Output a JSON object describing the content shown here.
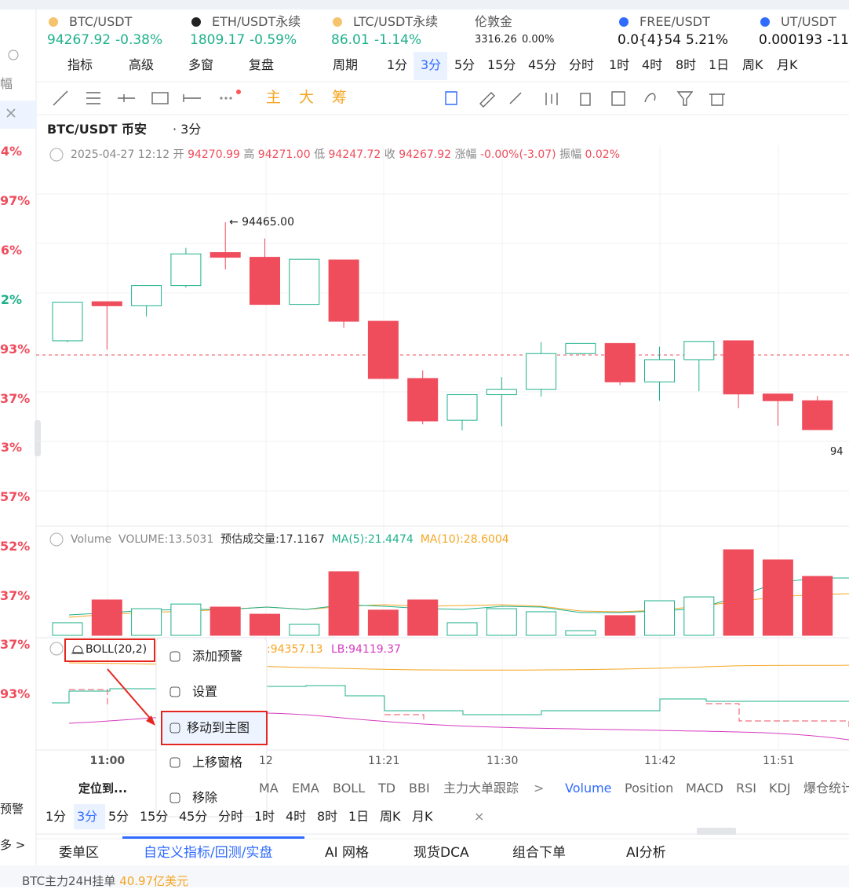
{
  "sidebar": {
    "sort_label": "幅",
    "changes": [
      {
        "text": "4%",
        "color": "#ef4c5c"
      },
      {
        "text": "97%",
        "color": "#ef4c5c"
      },
      {
        "text": "6%",
        "color": "#ef4c5c"
      },
      {
        "text": "2%",
        "color": "#1fb08b"
      },
      {
        "text": "93%",
        "color": "#ef4c5c"
      },
      {
        "text": "37%",
        "color": "#ef4c5c"
      },
      {
        "text": "3%",
        "color": "#ef4c5c"
      },
      {
        "text": "57%",
        "color": "#ef4c5c"
      },
      {
        "text": "52%",
        "color": "#ef4c5c"
      },
      {
        "text": "37%",
        "color": "#ef4c5c"
      },
      {
        "text": "37%",
        "color": "#ef4c5c"
      },
      {
        "text": "93%",
        "color": "#ef4c5c"
      }
    ],
    "alert": "预警",
    "more": "多 >"
  },
  "tickers": [
    {
      "symbol": "BTC/USDT",
      "price": "94267.92",
      "change": "-0.38%",
      "color": "#1fb08b"
    },
    {
      "symbol": "ETH/USDT永续",
      "price": "1809.17",
      "change": "-0.59%",
      "color": "#1fb08b"
    },
    {
      "symbol": "LTC/USDT永续",
      "price": "86.01",
      "change": "-1.14%",
      "color": "#1fb08b"
    },
    {
      "symbol": "伦敦金",
      "price": "3316.26",
      "change": "0.00%",
      "color": "#222222"
    },
    {
      "symbol": "FREE/USDT",
      "price": "0.0{4}54",
      "change": "5.21%",
      "color": "#111111"
    },
    {
      "symbol": "UT/USDT",
      "price": "0.000193",
      "change": "-11",
      "color": "#111111"
    }
  ],
  "toolbar": {
    "items": [
      "指标",
      "高级",
      "多窗",
      "复盘"
    ],
    "period": "周期",
    "intervals": [
      "1分",
      "3分",
      "5分",
      "15分",
      "45分",
      "分时",
      "1时",
      "4时",
      "8时",
      "1日",
      "周K",
      "月K"
    ],
    "active": 1
  },
  "draw_toolbar": {
    "chips": [
      "主",
      "大",
      "筹"
    ]
  },
  "chart": {
    "symbol": "BTC/USDT 币安",
    "interval": "· 3分",
    "ohlc": {
      "time": "2025-04-27 12:12",
      "open_label": "开",
      "open": "94270.99",
      "high_label": "高",
      "high": "94271.00",
      "low_label": "低",
      "low": "94247.72",
      "close_label": "收",
      "close": "94267.92",
      "change_label": "涨幅",
      "change": "-0.00%(-3.07)",
      "amp_label": "振幅",
      "amp": "0.02%"
    },
    "high_marker": "← 94465.00",
    "price_edge": "94",
    "candles": [
      {
        "open": 94289,
        "high": 94346,
        "low": 94287,
        "close": 94346
      },
      {
        "open": 94347,
        "high": 94347,
        "low": 94276,
        "close": 94341
      },
      {
        "open": 94341,
        "high": 94371,
        "low": 94325,
        "close": 94371
      },
      {
        "open": 94371,
        "high": 94427,
        "low": 94368,
        "close": 94418
      },
      {
        "open": 94420,
        "high": 94465,
        "low": 94395,
        "close": 94413
      },
      {
        "open": 94413,
        "high": 94441,
        "low": 94343,
        "close": 94343
      },
      {
        "open": 94343,
        "high": 94410,
        "low": 94343,
        "close": 94410
      },
      {
        "open": 94409,
        "high": 94409,
        "low": 94308,
        "close": 94318
      },
      {
        "open": 94318,
        "high": 94318,
        "low": 94233,
        "close": 94233
      },
      {
        "open": 94233,
        "high": 94245,
        "low": 94165,
        "close": 94170
      },
      {
        "open": 94171,
        "high": 94209,
        "low": 94156,
        "close": 94209
      },
      {
        "open": 94209,
        "high": 94235,
        "low": 94162,
        "close": 94217
      },
      {
        "open": 94217,
        "high": 94287,
        "low": 94206,
        "close": 94270
      },
      {
        "open": 94270,
        "high": 94285,
        "low": 94268,
        "close": 94285
      },
      {
        "open": 94285,
        "high": 94285,
        "low": 94223,
        "close": 94228
      },
      {
        "open": 94228,
        "high": 94280,
        "low": 94200,
        "close": 94261
      },
      {
        "open": 94261,
        "high": 94288,
        "low": 94214,
        "close": 94288
      },
      {
        "open": 94289,
        "high": 94289,
        "low": 94189,
        "close": 94210
      },
      {
        "open": 94210,
        "high": 94210,
        "low": 94163,
        "close": 94200
      },
      {
        "open": 94200,
        "high": 94207,
        "low": 94157,
        "close": 94157
      }
    ],
    "volume": {
      "name": "Volume",
      "current": "VOLUME:13.5031",
      "estimate": "预估成交量:17.1167",
      "ma5": "MA(5):21.4474",
      "ma10": "MA(10):28.6004",
      "values": [
        6.2,
        17.4,
        13.1,
        15.4,
        13.9,
        10.4,
        5.4,
        31.3,
        12.4,
        17.4,
        6.2,
        13.1,
        11.6,
        2.3,
        9.7,
        17.0,
        18.9,
        42.1,
        37.1,
        29.0
      ]
    },
    "boll": {
      "name": "BOLL(20,2)",
      "ub": ":94357.13",
      "lb": "LB:94119.37"
    },
    "time_ticks": [
      "11:00",
      "12",
      "11:21",
      "11:30",
      "11:42",
      "11:51"
    ]
  },
  "context_menu": {
    "items": [
      "添加预警",
      "设置",
      "移动到主图",
      "上移窗格",
      "移除"
    ]
  },
  "indicator_bar": {
    "locate": "定位到...",
    "main": [
      "MA",
      "EMA",
      "BOLL",
      "TD",
      "BBI",
      "主力大单跟踪"
    ],
    "more": ">",
    "sub": [
      "Volume",
      "Position",
      "MACD",
      "RSI",
      "KDJ",
      "爆仓统计"
    ]
  },
  "period_bar": {
    "items": [
      "1分",
      "3分",
      "5分",
      "15分",
      "45分",
      "分时",
      "1时",
      "4时",
      "8时",
      "1日",
      "周K",
      "月K"
    ],
    "close": "×",
    "active": 1
  },
  "tabs": {
    "items": [
      "委单区",
      "自定义指标/回测/实盘",
      "AI 网格",
      "现货DCA",
      "组合下单",
      "AI分析"
    ],
    "active": 1
  },
  "footer": {
    "label": "BTC主力24H挂单",
    "value": "40.97亿美元"
  }
}
